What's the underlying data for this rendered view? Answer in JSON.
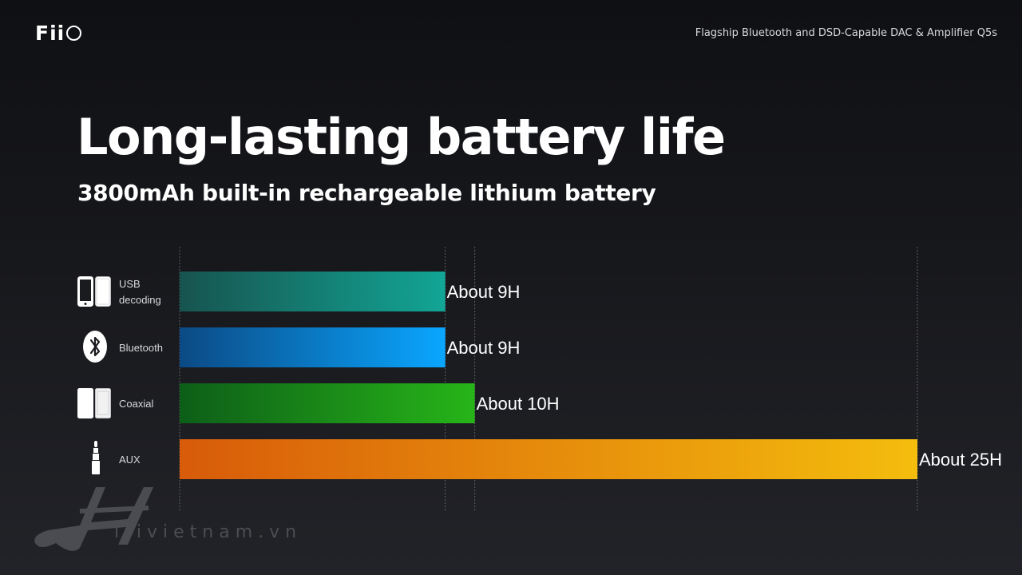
{
  "brand": {
    "logo_text": "Fii"
  },
  "header": {
    "product": "Flagship Bluetooth and DSD-Capable DAC & Amplifier Q5s"
  },
  "title": "Long-lasting battery life",
  "subtitle": "3800mAh built-in rechargeable lithium battery",
  "watermark": {
    "text": "ifivietnam.vn"
  },
  "chart_data": {
    "type": "bar",
    "orientation": "horizontal",
    "categories": [
      "USB decoding",
      "Bluetooth",
      "Coaxial",
      "AUX"
    ],
    "category_lines": [
      [
        "USB",
        "decoding"
      ],
      [
        "Bluetooth"
      ],
      [
        "Coaxial"
      ],
      [
        "AUX"
      ]
    ],
    "category_icons": [
      "phone-icon",
      "bluetooth-icon",
      "coaxial-device-icon",
      "audio-jack-icon"
    ],
    "values": [
      9,
      9,
      10,
      25
    ],
    "value_labels": [
      "About 9H",
      "About 9H",
      "About 10H",
      "About 25H"
    ],
    "xlim": [
      0,
      25
    ],
    "unit": "H",
    "grid": true,
    "legend": "none",
    "bar_gradients": [
      [
        "#17544f",
        "#12a595"
      ],
      [
        "#0b4a84",
        "#0aa6ff"
      ],
      [
        "#0d5e18",
        "#27b518"
      ],
      [
        "#d85b0a",
        "#f4bd0d"
      ]
    ]
  }
}
